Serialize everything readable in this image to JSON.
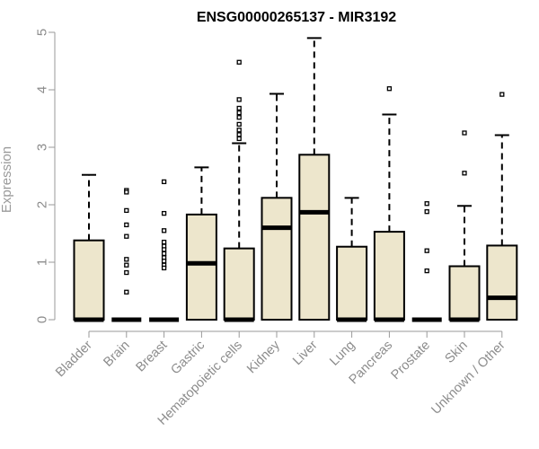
{
  "chart_data": {
    "type": "boxplot",
    "title": "ENSG00000265137 - MIR3192",
    "xlabel": "",
    "ylabel": "Expression",
    "ylim": [
      0,
      5
    ],
    "yticks": [
      0,
      1,
      2,
      3,
      4,
      5
    ],
    "grid": false,
    "legend": "none",
    "colors": {
      "box_fill": "#ede6cc",
      "box_stroke": "#000000",
      "axis": "#9a9a9a",
      "text": "#8c8c8c"
    },
    "categories": [
      "Bladder",
      "Brain",
      "Breast",
      "Gastric",
      "Hematopoietic cells",
      "Kidney",
      "Liver",
      "Lung",
      "Pancreas",
      "Prostate",
      "Skin",
      "Unknown / Other"
    ],
    "boxes": [
      {
        "category": "Bladder",
        "q1": 0,
        "median": 0,
        "q3": 1.38,
        "whisker_low": 0,
        "whisker_high": 2.52,
        "outliers": []
      },
      {
        "category": "Brain",
        "q1": 0,
        "median": 0,
        "q3": 0,
        "whisker_low": 0,
        "whisker_high": 0,
        "outliers": [
          2.25,
          2.22,
          1.9,
          1.65,
          1.45,
          1.05,
          0.95,
          0.82,
          0.48
        ]
      },
      {
        "category": "Breast",
        "q1": 0,
        "median": 0,
        "q3": 0,
        "whisker_low": 0,
        "whisker_high": 0,
        "outliers": [
          2.4,
          1.85,
          1.55,
          1.35,
          1.28,
          1.22,
          1.15,
          1.08,
          1.02,
          0.95,
          0.9
        ]
      },
      {
        "category": "Gastric",
        "q1": 0,
        "median": 0.98,
        "q3": 1.83,
        "whisker_low": 0,
        "whisker_high": 2.65,
        "outliers": []
      },
      {
        "category": "Hematopoietic cells",
        "q1": 0,
        "median": 0,
        "q3": 1.24,
        "whisker_low": 0,
        "whisker_high": 3.07,
        "outliers": [
          4.48,
          3.83,
          3.68,
          3.6,
          3.52,
          3.4,
          3.3,
          3.22,
          3.15
        ]
      },
      {
        "category": "Kidney",
        "q1": 0,
        "median": 1.6,
        "q3": 2.12,
        "whisker_low": 0,
        "whisker_high": 3.93,
        "outliers": []
      },
      {
        "category": "Liver",
        "q1": 0,
        "median": 1.87,
        "q3": 2.87,
        "whisker_low": 0,
        "whisker_high": 4.9,
        "outliers": []
      },
      {
        "category": "Lung",
        "q1": 0,
        "median": 0,
        "q3": 1.27,
        "whisker_low": 0,
        "whisker_high": 2.12,
        "outliers": []
      },
      {
        "category": "Pancreas",
        "q1": 0,
        "median": 0,
        "q3": 1.53,
        "whisker_low": 0,
        "whisker_high": 3.57,
        "outliers": [
          4.02
        ]
      },
      {
        "category": "Prostate",
        "q1": 0,
        "median": 0,
        "q3": 0,
        "whisker_low": 0,
        "whisker_high": 0,
        "outliers": [
          2.02,
          1.88,
          1.2,
          0.85
        ]
      },
      {
        "category": "Skin",
        "q1": 0,
        "median": 0,
        "q3": 0.93,
        "whisker_low": 0,
        "whisker_high": 1.98,
        "outliers": [
          3.25,
          2.55
        ]
      },
      {
        "category": "Unknown / Other",
        "q1": 0,
        "median": 0.38,
        "q3": 1.29,
        "whisker_low": 0,
        "whisker_high": 3.21,
        "outliers": [
          3.92
        ]
      }
    ]
  }
}
